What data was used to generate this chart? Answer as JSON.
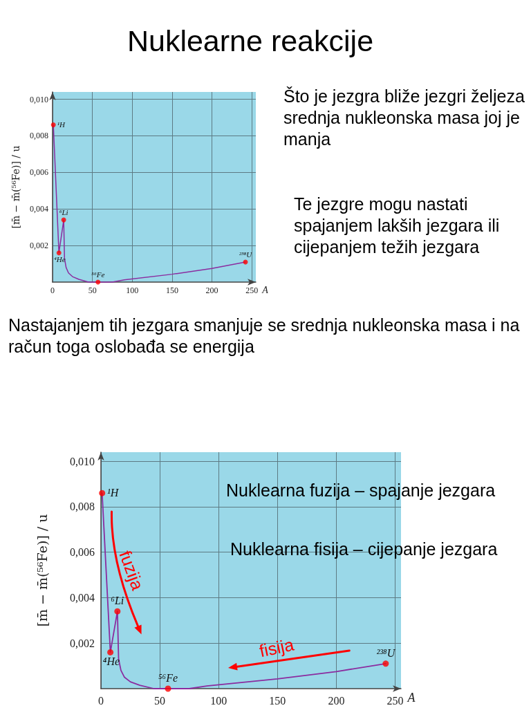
{
  "chart_data": [
    {
      "type": "line",
      "title": "Nuklearne reakcije",
      "xlabel": "A",
      "ylabel": "[m̄ − m̄(⁵⁶Fe)] / u",
      "xlim": [
        0,
        255
      ],
      "ylim": [
        0,
        0.0104
      ],
      "xticks": [
        0,
        50,
        100,
        150,
        200,
        250
      ],
      "yticks": [
        {
          "value": 0.002,
          "label": "0,002"
        },
        {
          "value": 0.004,
          "label": "0,004"
        },
        {
          "value": 0.006,
          "label": "0,006"
        },
        {
          "value": 0.008,
          "label": "0,008"
        },
        {
          "value": 0.01,
          "label": "0,010"
        }
      ],
      "grid": true,
      "series": [
        {
          "color": "#8b2c9f",
          "marker": "none",
          "x": [
            1,
            8,
            14,
            15,
            17,
            20,
            25,
            33,
            45,
            57,
            75,
            90,
            150,
            200,
            242
          ],
          "values": [
            0.0086,
            0.0016,
            0.0034,
            0.0013,
            0.0008,
            0.0005,
            0.0003,
            0.00015,
            0,
            0,
            0,
            0.00012,
            0.00043,
            0.00075,
            0.0011
          ]
        },
        {
          "type": "scatter",
          "color": "#ff0000",
          "marker": "circle",
          "x": [
            1,
            8,
            14,
            57,
            242
          ],
          "values": [
            0.0086,
            0.0016,
            0.0034,
            0,
            0.0011
          ]
        }
      ],
      "annotations": [
        {
          "text": "¹H",
          "x": 1,
          "y": 0.0086
        },
        {
          "text": "⁴He",
          "x": 8,
          "y": 0.0016
        },
        {
          "text": "⁶Li",
          "x": 14,
          "y": 0.0034
        },
        {
          "text": "⁵⁶Fe",
          "x": 57,
          "y": 0
        },
        {
          "text": "²³⁸U",
          "x": 242,
          "y": 0.0011
        },
        "Što je jezgra bliže jezgri željeza srednja nukleonska masa joj je manja",
        "Te jezgre mogu nastati spajanjem lakših jezgara ili cijepanjem težih jezgara",
        "Nastajanjem tih jezgara smanjuje se srednja nukleonska masa i na račun toga oslobađa se energija"
      ]
    },
    {
      "type": "line",
      "xlabel": "A",
      "ylabel": "[m̄ − m̄(⁵⁶Fe)] / u",
      "xlim": [
        0,
        255
      ],
      "ylim": [
        0,
        0.0104
      ],
      "xticks": [
        0,
        50,
        100,
        150,
        200,
        250
      ],
      "yticks": [
        {
          "value": 0.002,
          "label": "0,002"
        },
        {
          "value": 0.004,
          "label": "0,004"
        },
        {
          "value": 0.006,
          "label": "0,006"
        },
        {
          "value": 0.008,
          "label": "0,008"
        },
        {
          "value": 0.01,
          "label": "0,010"
        }
      ],
      "grid": true,
      "series": [
        {
          "color": "#8b2c9f",
          "marker": "none",
          "x": [
            1,
            8,
            14,
            15,
            17,
            20,
            25,
            33,
            45,
            57,
            75,
            90,
            150,
            200,
            242
          ],
          "values": [
            0.0086,
            0.0016,
            0.0034,
            0.0013,
            0.0008,
            0.0005,
            0.0003,
            0.00015,
            0,
            0,
            0,
            0.00012,
            0.00043,
            0.00075,
            0.0011
          ]
        },
        {
          "type": "scatter",
          "color": "#ff0000",
          "marker": "circle",
          "x": [
            1,
            8,
            14,
            57,
            242
          ],
          "values": [
            0.0086,
            0.0016,
            0.0034,
            0,
            0.0011
          ]
        }
      ],
      "annotations": [
        {
          "text": "¹H",
          "x": 1,
          "y": 0.0086
        },
        {
          "text": "⁴He",
          "x": 8,
          "y": 0.0016
        },
        {
          "text": "⁶Li",
          "x": 14,
          "y": 0.0034
        },
        {
          "text": "⁵⁶Fe",
          "x": 57,
          "y": 0
        },
        {
          "text": "²³⁸U",
          "x": 242,
          "y": 0.0011
        },
        "Nuklearna fuzija – spajanje jezgara",
        "Nuklearna fisija – cijepanje jezgara",
        "fuzija",
        "fisija"
      ]
    }
  ]
}
